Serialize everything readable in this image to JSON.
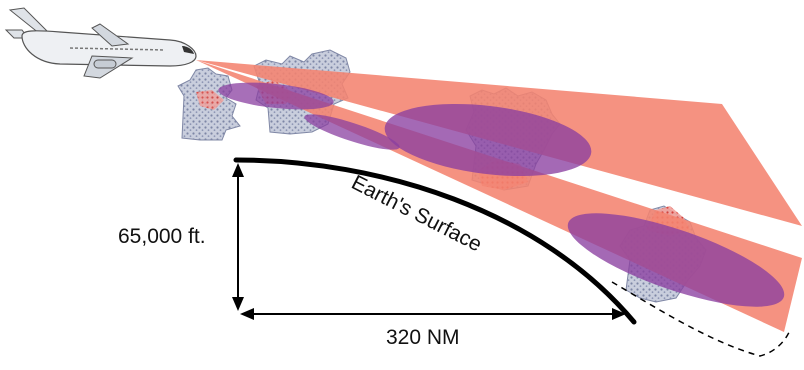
{
  "diagram": {
    "surface_label": "Earth's Surface",
    "altitude_label": "65,000 ft.",
    "distance_label": "320 NM",
    "colors": {
      "beam": "#f4836f",
      "return_echo": "#8a3fa0",
      "storm_cloud": "#9aa2bf",
      "storm_precip": "#e8433a",
      "earth_line": "#000000",
      "aircraft_body": "#eef0f3"
    },
    "icons": [
      "aircraft-icon",
      "storm-cell-icon"
    ]
  }
}
